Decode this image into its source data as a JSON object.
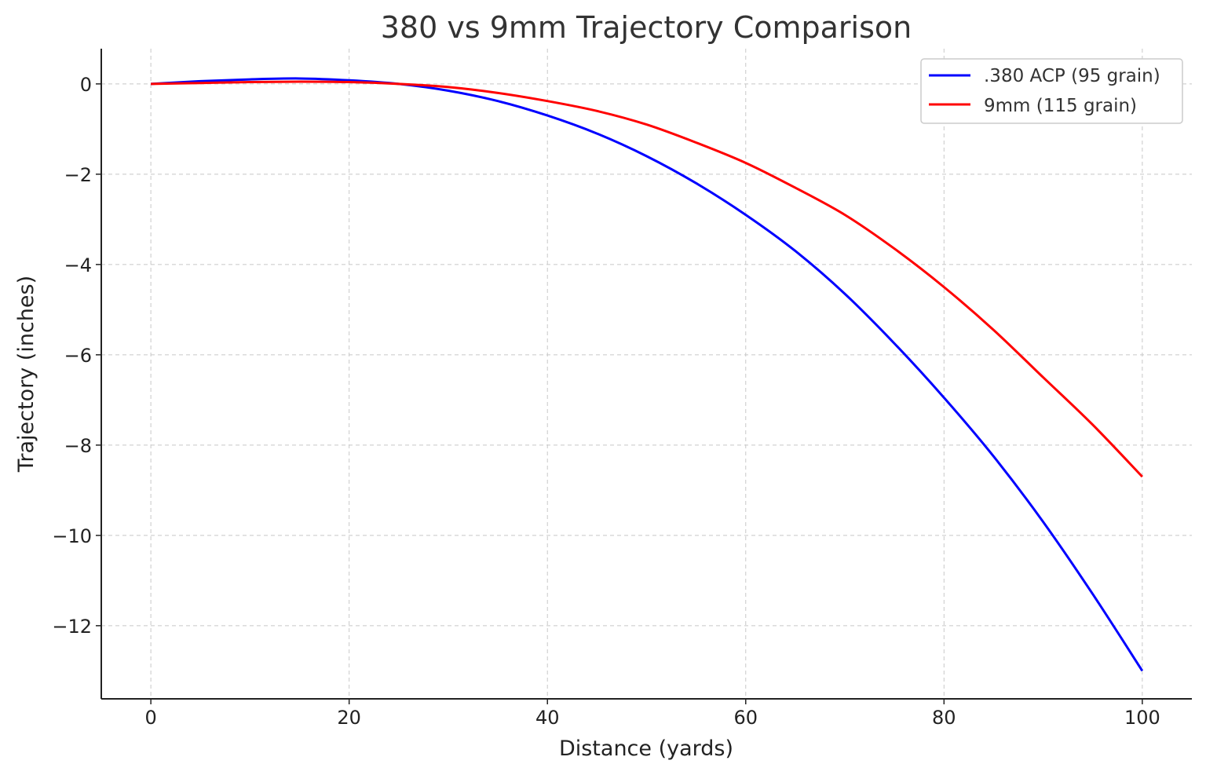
{
  "chart_data": {
    "type": "line",
    "title": "380 vs 9mm Trajectory Comparison",
    "xlabel": "Distance (yards)",
    "ylabel": "Trajectory (inches)",
    "xlim": [
      -5,
      105
    ],
    "ylim": [
      -13.62,
      0.78
    ],
    "xticks": [
      0,
      20,
      40,
      60,
      80,
      100
    ],
    "yticks": [
      0,
      -2,
      -4,
      -6,
      -8,
      -10,
      -12
    ],
    "ytick_labels": [
      "0",
      "−2",
      "−4",
      "−6",
      "−8",
      "−10",
      "−12"
    ],
    "grid": true,
    "legend_position": "top-right",
    "x": [
      0,
      5,
      10,
      15,
      20,
      25,
      30,
      35,
      40,
      45,
      50,
      55,
      60,
      65,
      70,
      75,
      80,
      85,
      90,
      95,
      100
    ],
    "series": [
      {
        "name": ".380 ACP (95 grain)",
        "color": "#0000ff",
        "values": [
          0,
          0.06,
          0.1,
          0.12,
          0.08,
          0,
          -0.15,
          -0.38,
          -0.7,
          -1.1,
          -1.6,
          -2.2,
          -2.9,
          -3.7,
          -4.65,
          -5.75,
          -6.95,
          -8.25,
          -9.7,
          -11.3,
          -13.0
        ]
      },
      {
        "name": "9mm (115 grain)",
        "color": "#ff0000",
        "values": [
          0,
          0.02,
          0.04,
          0.05,
          0.04,
          0,
          -0.07,
          -0.2,
          -0.38,
          -0.6,
          -0.9,
          -1.3,
          -1.75,
          -2.3,
          -2.9,
          -3.65,
          -4.5,
          -5.45,
          -6.5,
          -7.55,
          -8.7
        ]
      }
    ]
  }
}
